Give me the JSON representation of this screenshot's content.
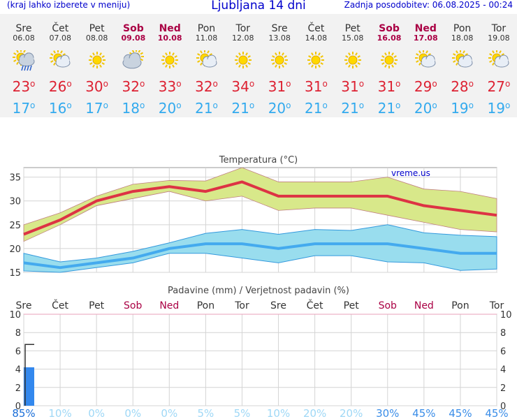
{
  "header": {
    "left": "(kraj lahko izberete v meniju)",
    "title": "Ljubljana 14 dni",
    "right": "Zadnja posodobitev: 06.08.2025 - 00:24"
  },
  "days": [
    {
      "name": "Sre",
      "date": "06.08",
      "weekend": false,
      "icon": "sun-cloud-rain-icon",
      "max": "23",
      "min": "17"
    },
    {
      "name": "Čet",
      "date": "07.08",
      "weekend": false,
      "icon": "sun-cloud-icon",
      "max": "26",
      "min": "16"
    },
    {
      "name": "Pet",
      "date": "08.08",
      "weekend": false,
      "icon": "sun-icon",
      "max": "30",
      "min": "17"
    },
    {
      "name": "Sob",
      "date": "09.08",
      "weekend": true,
      "icon": "cloud-sun-icon",
      "max": "32",
      "min": "18"
    },
    {
      "name": "Ned",
      "date": "10.08",
      "weekend": true,
      "icon": "sun-icon",
      "max": "33",
      "min": "20"
    },
    {
      "name": "Pon",
      "date": "11.08",
      "weekend": false,
      "icon": "sun-cloud-icon",
      "max": "32",
      "min": "21"
    },
    {
      "name": "Tor",
      "date": "12.08",
      "weekend": false,
      "icon": "sun-icon",
      "max": "34",
      "min": "21"
    },
    {
      "name": "Sre",
      "date": "13.08",
      "weekend": false,
      "icon": "sun-icon",
      "max": "31",
      "min": "20"
    },
    {
      "name": "Čet",
      "date": "14.08",
      "weekend": false,
      "icon": "sun-icon",
      "max": "31",
      "min": "21"
    },
    {
      "name": "Pet",
      "date": "15.08",
      "weekend": false,
      "icon": "sun-icon",
      "max": "31",
      "min": "21"
    },
    {
      "name": "Sob",
      "date": "16.08",
      "weekend": true,
      "icon": "sun-icon",
      "max": "31",
      "min": "21"
    },
    {
      "name": "Ned",
      "date": "17.08",
      "weekend": true,
      "icon": "sun-cloud-icon",
      "max": "29",
      "min": "20"
    },
    {
      "name": "Pon",
      "date": "18.08",
      "weekend": false,
      "icon": "sun-cloud-icon",
      "max": "28",
      "min": "19"
    },
    {
      "name": "Tor",
      "date": "19.08",
      "weekend": false,
      "icon": "sun-cloud-icon",
      "max": "27",
      "min": "19"
    }
  ],
  "colors": {
    "max": "#dd3344",
    "min": "#44aaee",
    "max_band": "#d8e88a",
    "min_band": "#99ddee",
    "precip": "#3388ee",
    "weekend": "#aa0044"
  },
  "chart_data": [
    {
      "type": "line",
      "title": "Temperatura (°C)",
      "watermark": "vreme.us",
      "ylim": [
        15,
        37
      ],
      "yticks": [
        15,
        20,
        25,
        30,
        35
      ],
      "grid": true,
      "x": [
        "06.08",
        "07.08",
        "08.08",
        "09.08",
        "10.08",
        "11.08",
        "12.08",
        "13.08",
        "14.08",
        "15.08",
        "16.08",
        "17.08",
        "18.08",
        "19.08"
      ],
      "series": [
        {
          "values": [
            23,
            26,
            30,
            32,
            33,
            32,
            34,
            31,
            31,
            31,
            31,
            29,
            28,
            27
          ],
          "band_low": [
            21.5,
            25,
            29,
            30.5,
            32,
            30,
            31,
            28,
            28.5,
            28.5,
            27,
            25.5,
            24,
            23.5
          ],
          "band_high": [
            25,
            27.5,
            31,
            33.5,
            34.3,
            34.2,
            37,
            34,
            34,
            34,
            35,
            32.5,
            32,
            30.5
          ]
        },
        {
          "values": [
            17,
            16,
            17,
            18,
            20,
            21,
            21,
            20,
            21,
            21,
            21,
            20,
            19,
            19
          ],
          "band_low": [
            15.3,
            15,
            16,
            17,
            19,
            19,
            18,
            17,
            18.5,
            18.5,
            17.2,
            17,
            15.4,
            15.7
          ],
          "band_high": [
            19,
            17.2,
            18,
            19.4,
            21.2,
            23.2,
            24,
            23,
            24,
            23.8,
            25,
            23.3,
            22.8,
            22.5
          ]
        }
      ]
    },
    {
      "type": "bar",
      "title": "Padavine (mm) / Verjetnost padavin (%)",
      "ylim": [
        0,
        10
      ],
      "yticks": [
        0,
        2,
        4,
        6,
        8,
        10
      ],
      "grid": true,
      "categories": [
        "Sre",
        "Čet",
        "Pet",
        "Sob",
        "Ned",
        "Pon",
        "Tor",
        "Sre",
        "Čet",
        "Pet",
        "Sob",
        "Ned",
        "Pon",
        "Tor"
      ],
      "values": [
        4.2,
        0,
        0,
        0,
        0,
        0,
        0,
        0,
        0,
        0,
        0,
        0,
        0,
        0
      ],
      "max_values": [
        6.7,
        0,
        0,
        0,
        0,
        0,
        0,
        0,
        0,
        0,
        0,
        0,
        0,
        0
      ],
      "probability": [
        "85%",
        "10%",
        "0%",
        "0%",
        "0%",
        "5%",
        "5%",
        "10%",
        "20%",
        "20%",
        "30%",
        "45%",
        "45%",
        "45%"
      ]
    }
  ]
}
